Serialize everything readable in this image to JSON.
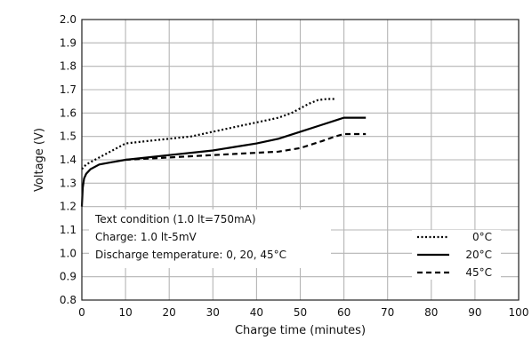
{
  "chart_data": {
    "type": "line",
    "title": "",
    "xlabel": "Charge time (minutes)",
    "ylabel": "Voltage (V)",
    "xlim": [
      0,
      100
    ],
    "ylim": [
      0.8,
      2.0
    ],
    "xticks": [
      0,
      10,
      20,
      30,
      40,
      50,
      60,
      70,
      80,
      90,
      100
    ],
    "yticks": [
      "0.8",
      "0.9",
      "1.0",
      "1.1",
      "1.2",
      "1.3",
      "1.4",
      "1.5",
      "1.6",
      "1.7",
      "1.8",
      "1.9",
      "2.0"
    ],
    "grid": true,
    "legend_position": "bottom-right",
    "annotation_lines": [
      "Text condition (1.0 lt=750mA)",
      "Charge: 1.0 lt-5mV",
      "Discharge temperature: 0, 20, 45°C"
    ],
    "series": [
      {
        "name": "0°C",
        "style": "dotted",
        "x": [
          0,
          1,
          3,
          6,
          10,
          15,
          20,
          25,
          30,
          35,
          40,
          45,
          48,
          50,
          52,
          54,
          56,
          58
        ],
        "y": [
          1.36,
          1.38,
          1.4,
          1.43,
          1.47,
          1.48,
          1.49,
          1.5,
          1.52,
          1.54,
          1.56,
          1.58,
          1.6,
          1.62,
          1.64,
          1.655,
          1.66,
          1.66
        ]
      },
      {
        "name": "20°C",
        "style": "solid",
        "x": [
          0,
          0.2,
          0.5,
          1,
          2,
          4,
          7,
          10,
          15,
          20,
          25,
          30,
          35,
          40,
          45,
          50,
          55,
          60,
          62,
          65
        ],
        "y": [
          1.2,
          1.28,
          1.32,
          1.34,
          1.36,
          1.38,
          1.39,
          1.4,
          1.41,
          1.42,
          1.43,
          1.44,
          1.455,
          1.47,
          1.49,
          1.52,
          1.55,
          1.58,
          1.58,
          1.58
        ]
      },
      {
        "name": "45°C",
        "style": "dashed",
        "x": [
          10,
          15,
          20,
          25,
          30,
          35,
          40,
          45,
          50,
          55,
          58,
          60,
          62,
          65
        ],
        "y": [
          1.4,
          1.405,
          1.41,
          1.415,
          1.42,
          1.425,
          1.43,
          1.435,
          1.45,
          1.48,
          1.5,
          1.51,
          1.51,
          1.51
        ]
      }
    ]
  }
}
